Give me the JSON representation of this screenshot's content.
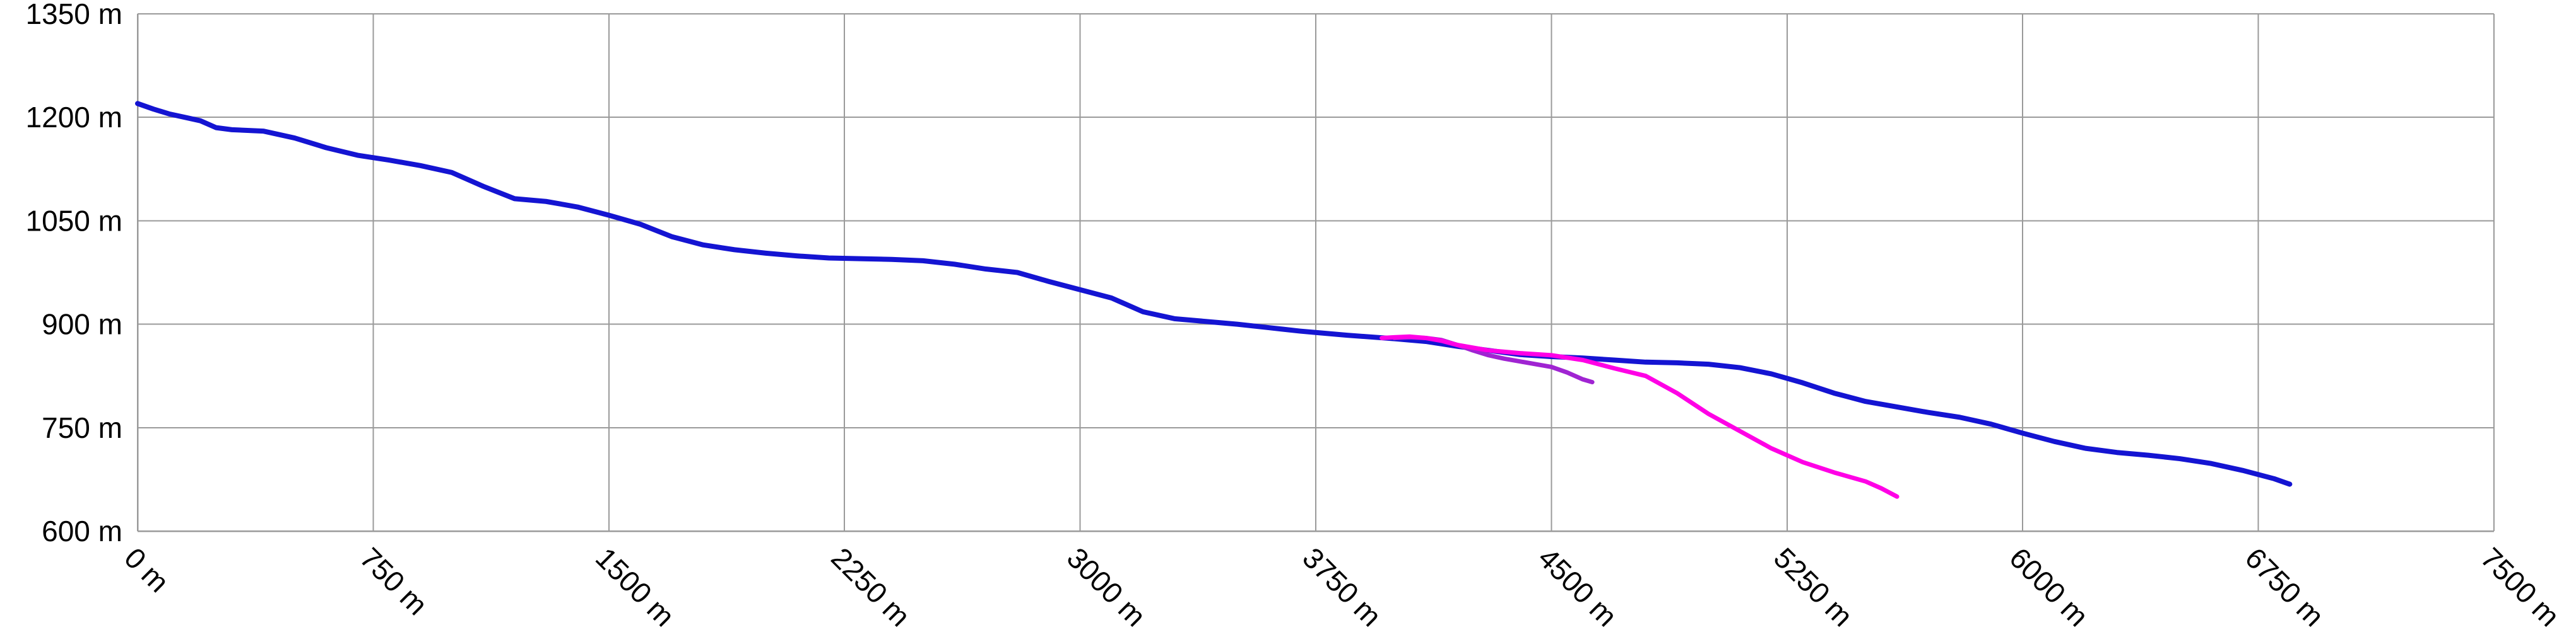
{
  "chart_data": {
    "type": "line",
    "title": "",
    "xlabel": "",
    "ylabel": "",
    "xlim": [
      0,
      7500
    ],
    "ylim": [
      600,
      1350
    ],
    "x_ticks": [
      0,
      750,
      1500,
      2250,
      3000,
      3750,
      4500,
      5250,
      6000,
      6750,
      7500
    ],
    "x_tick_labels": [
      "0 m",
      "750 m",
      "1500 m",
      "2250 m",
      "3000 m",
      "3750 m",
      "4500 m",
      "5250 m",
      "6000 m",
      "6750 m",
      "7500 m"
    ],
    "y_ticks": [
      600,
      750,
      900,
      1050,
      1200,
      1350
    ],
    "y_tick_labels": [
      "600 m",
      "750 m",
      "900 m",
      "1050 m",
      "1200 m",
      "1350 m"
    ],
    "grid": true,
    "legend": "none",
    "series": [
      {
        "color": "#1414d2",
        "points": [
          [
            0,
            1220
          ],
          [
            50,
            1212
          ],
          [
            100,
            1205
          ],
          [
            150,
            1200
          ],
          [
            200,
            1195
          ],
          [
            250,
            1185
          ],
          [
            300,
            1182
          ],
          [
            400,
            1180
          ],
          [
            500,
            1170
          ],
          [
            600,
            1156
          ],
          [
            700,
            1145
          ],
          [
            800,
            1138
          ],
          [
            900,
            1130
          ],
          [
            1000,
            1120
          ],
          [
            1100,
            1100
          ],
          [
            1200,
            1082
          ],
          [
            1300,
            1078
          ],
          [
            1400,
            1070
          ],
          [
            1500,
            1058
          ],
          [
            1600,
            1045
          ],
          [
            1700,
            1027
          ],
          [
            1800,
            1015
          ],
          [
            1900,
            1008
          ],
          [
            2000,
            1003
          ],
          [
            2100,
            999
          ],
          [
            2200,
            996
          ],
          [
            2300,
            995
          ],
          [
            2400,
            994
          ],
          [
            2500,
            992
          ],
          [
            2600,
            987
          ],
          [
            2700,
            980
          ],
          [
            2800,
            975
          ],
          [
            2900,
            962
          ],
          [
            3000,
            950
          ],
          [
            3100,
            938
          ],
          [
            3200,
            918
          ],
          [
            3300,
            908
          ],
          [
            3400,
            904
          ],
          [
            3500,
            900
          ],
          [
            3600,
            895
          ],
          [
            3700,
            890
          ],
          [
            3750,
            888
          ],
          [
            3850,
            884
          ],
          [
            4000,
            879
          ],
          [
            4100,
            875
          ],
          [
            4200,
            868
          ],
          [
            4300,
            862
          ],
          [
            4400,
            856
          ],
          [
            4500,
            853
          ],
          [
            4600,
            851
          ],
          [
            4700,
            848
          ],
          [
            4800,
            845
          ],
          [
            4900,
            844
          ],
          [
            5000,
            842
          ],
          [
            5100,
            837
          ],
          [
            5200,
            828
          ],
          [
            5300,
            815
          ],
          [
            5400,
            800
          ],
          [
            5500,
            788
          ],
          [
            5600,
            780
          ],
          [
            5700,
            772
          ],
          [
            5800,
            765
          ],
          [
            5900,
            755
          ],
          [
            6000,
            742
          ],
          [
            6100,
            730
          ],
          [
            6200,
            720
          ],
          [
            6300,
            714
          ],
          [
            6400,
            710
          ],
          [
            6500,
            705
          ],
          [
            6600,
            698
          ],
          [
            6700,
            688
          ],
          [
            6800,
            676
          ],
          [
            6850,
            668
          ]
        ]
      },
      {
        "color": "#a024d2",
        "points": [
          [
            4000,
            880
          ],
          [
            4050,
            881
          ],
          [
            4100,
            880
          ],
          [
            4150,
            877
          ],
          [
            4200,
            870
          ],
          [
            4250,
            862
          ],
          [
            4300,
            855
          ],
          [
            4350,
            850
          ],
          [
            4400,
            846
          ],
          [
            4450,
            842
          ],
          [
            4500,
            838
          ],
          [
            4550,
            830
          ],
          [
            4600,
            820
          ],
          [
            4630,
            816
          ]
        ]
      },
      {
        "color": "#ff00e6",
        "points": [
          [
            3960,
            880
          ],
          [
            4000,
            881
          ],
          [
            4050,
            882
          ],
          [
            4100,
            880
          ],
          [
            4150,
            876
          ],
          [
            4200,
            870
          ],
          [
            4250,
            866
          ],
          [
            4300,
            862
          ],
          [
            4350,
            860
          ],
          [
            4400,
            858
          ],
          [
            4500,
            855
          ],
          [
            4600,
            848
          ],
          [
            4700,
            836
          ],
          [
            4800,
            825
          ],
          [
            4900,
            800
          ],
          [
            5000,
            770
          ],
          [
            5100,
            745
          ],
          [
            5200,
            720
          ],
          [
            5300,
            700
          ],
          [
            5400,
            685
          ],
          [
            5500,
            672
          ],
          [
            5550,
            662
          ],
          [
            5600,
            650
          ]
        ]
      }
    ]
  }
}
